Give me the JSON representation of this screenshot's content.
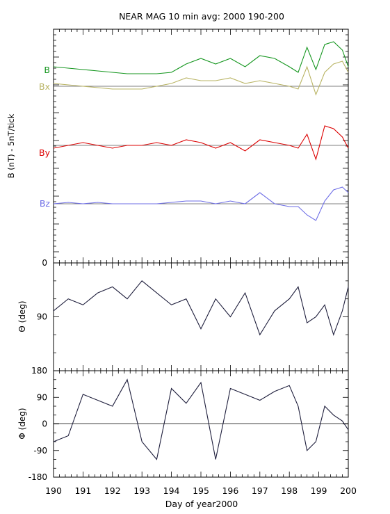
{
  "title": "NEAR MAG 10 min avg: 2000 190-200",
  "chart_data": [
    {
      "type": "line",
      "panel": "B components",
      "ylabel": "B  (nT) - 5nT/tick",
      "bottom_tick_label": "0",
      "x": [
        190,
        190.5,
        191,
        191.5,
        192,
        192.5,
        193,
        193.5,
        194,
        194.5,
        195,
        195.5,
        196,
        196.5,
        197,
        197.5,
        198,
        198.3,
        198.6,
        198.9,
        199.2,
        199.5,
        199.8,
        200
      ],
      "series": [
        {
          "name": "B",
          "color": "#14961e",
          "values": [
            7,
            6.5,
            6,
            5.5,
            5,
            4.5,
            4.5,
            4.5,
            5,
            8,
            10,
            8,
            10,
            7,
            11,
            10,
            7,
            5,
            14,
            6,
            15,
            16,
            13,
            7
          ]
        },
        {
          "name": "Bx",
          "color": "#b9b464",
          "values": [
            1,
            0.5,
            0,
            -0.5,
            -1,
            -1,
            -1,
            0,
            1,
            3,
            2,
            2,
            3,
            1,
            2,
            1,
            0,
            -1,
            7,
            -3,
            5,
            8,
            9,
            5
          ]
        },
        {
          "name": "By",
          "color": "#dc0000",
          "values": [
            -1,
            0,
            1,
            0,
            -1,
            0,
            0,
            1,
            0,
            2,
            1,
            -1,
            1,
            -2,
            2,
            1,
            0,
            -1,
            4,
            -5,
            7,
            6,
            3,
            -1
          ]
        },
        {
          "name": "Bz",
          "color": "#6e6ee6",
          "values": [
            0,
            0.5,
            0,
            0.5,
            0,
            0,
            0,
            0,
            0.5,
            1,
            1,
            0,
            1,
            0,
            4,
            0,
            -1,
            -1,
            -4,
            -6,
            1,
            5,
            6,
            4
          ]
        }
      ]
    },
    {
      "type": "line",
      "panel": "Theta",
      "ylabel": "Θ (deg)",
      "ylim": [
        0,
        180
      ],
      "y_ticks": [
        "90"
      ],
      "series": [
        {
          "name": "",
          "color": "#1e1e3c",
          "values": [
            80,
            60,
            70,
            50,
            40,
            60,
            30,
            50,
            70,
            60,
            110,
            60,
            90,
            50,
            120,
            80,
            60,
            40,
            100,
            90,
            70,
            120,
            80,
            40
          ]
        }
      ]
    },
    {
      "type": "line",
      "panel": "Phi",
      "ylabel": "Φ (deg)",
      "ylim": [
        -180,
        180
      ],
      "y_ticks": [
        "180",
        "90",
        "0",
        "-90",
        "-180"
      ],
      "xlabel": "Day of year2000",
      "x_ticks": [
        "190",
        "191",
        "192",
        "193",
        "194",
        "195",
        "196",
        "197",
        "198",
        "199",
        "200"
      ],
      "series": [
        {
          "name": "",
          "color": "#1e1e3c",
          "values": [
            -60,
            -40,
            100,
            80,
            60,
            150,
            -60,
            -120,
            120,
            70,
            140,
            -120,
            120,
            100,
            80,
            110,
            130,
            60,
            -90,
            -60,
            60,
            30,
            10,
            -20
          ]
        }
      ]
    }
  ]
}
